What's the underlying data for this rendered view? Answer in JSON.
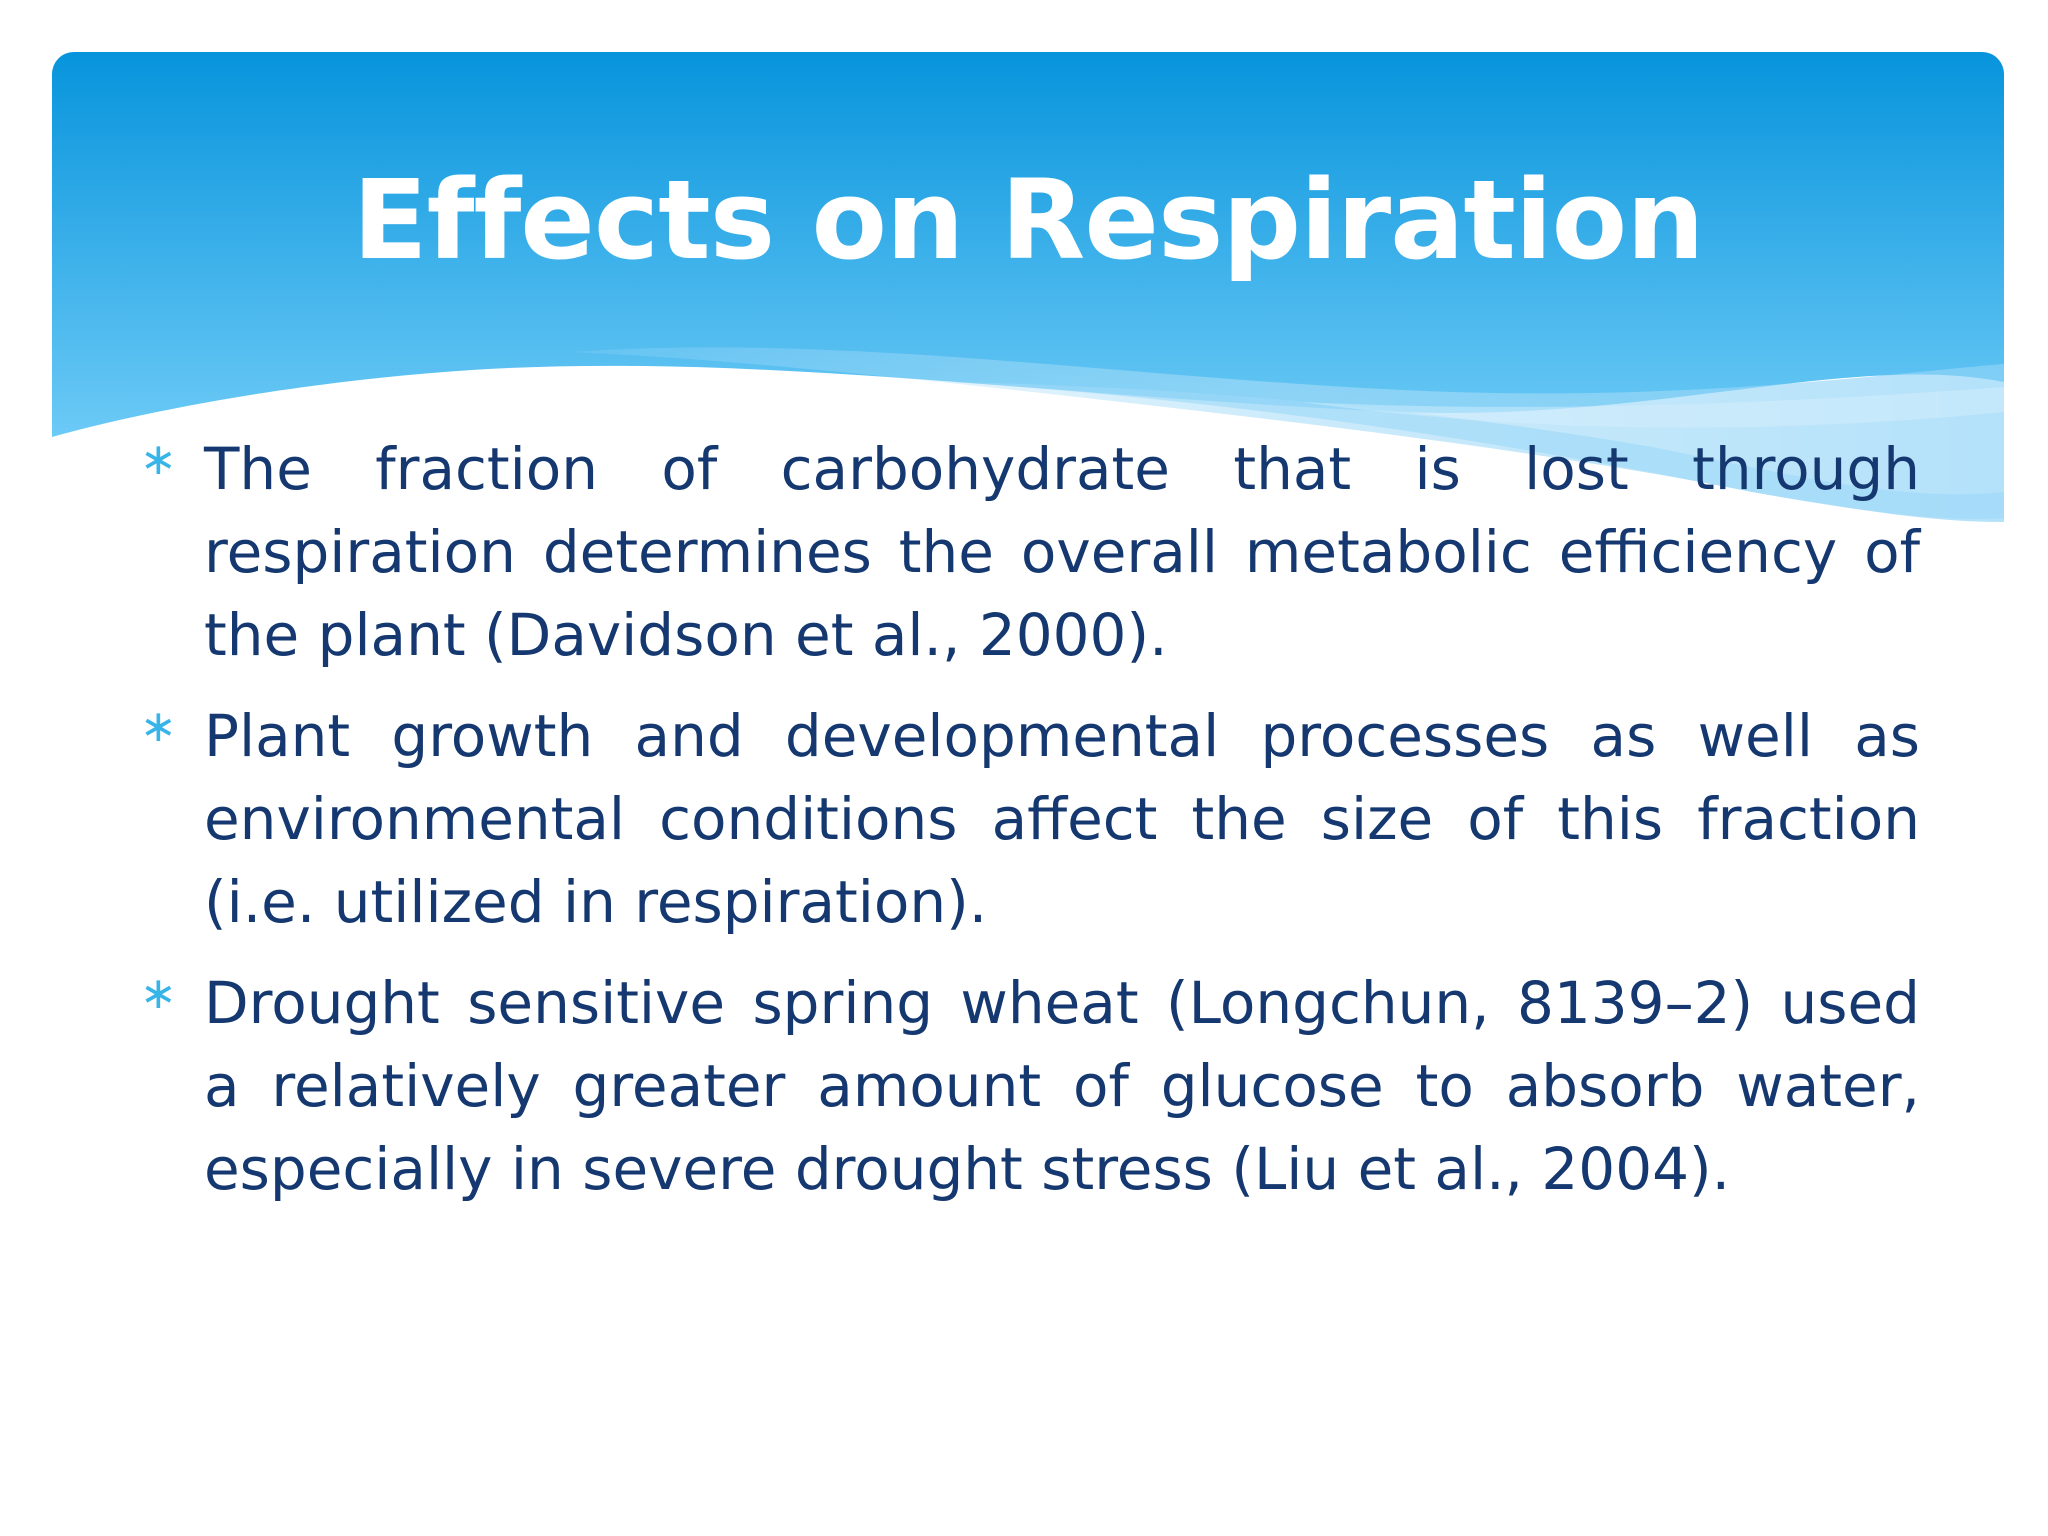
{
  "slide": {
    "title": "Effects on Respiration",
    "bullets": [
      {
        "icon": "asterisk-icon",
        "text": "The fraction of carbohydrate that is lost through respiration determines the overall metabolic efficiency of the plant (Davidson et al., 2000)."
      },
      {
        "icon": "asterisk-icon",
        "text": "Plant growth and developmental processes as well as environmental conditions affect the size of this fraction (i.e. utilized in respiration)."
      },
      {
        "icon": "asterisk-icon",
        "text": "Drought sensitive spring wheat (Longchun, 8139–2) used a relatively greater amount of glucose to absorb water, especially in severe drought stress (Liu et al., 2004)."
      }
    ]
  },
  "colors": {
    "header_top": "#0794dc",
    "header_bottom": "#5ec3f3",
    "title": "#ffffff",
    "body_text": "#14386f",
    "bullet": "#38b5e8"
  }
}
